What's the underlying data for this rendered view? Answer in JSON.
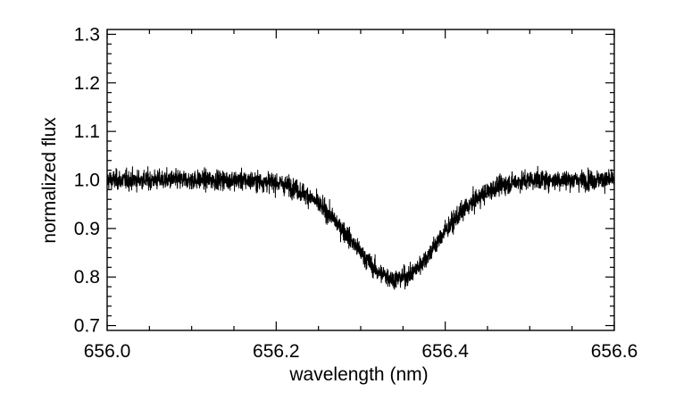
{
  "chart_data": {
    "type": "line",
    "title": "",
    "xlabel": "wavelength (nm)",
    "ylabel": "normalized flux",
    "xlim": [
      656.0,
      656.6
    ],
    "ylim": [
      0.69,
      1.31
    ],
    "x_ticks": [
      656.0,
      656.2,
      656.4,
      656.6
    ],
    "x_tick_labels": [
      "656.0",
      "656.2",
      "656.4",
      "656.6"
    ],
    "y_ticks": [
      0.7,
      0.8,
      0.9,
      1.0,
      1.1,
      1.2,
      1.3
    ],
    "y_tick_labels": [
      "0.7",
      "0.8",
      "0.9",
      "1.0",
      "1.1",
      "1.2",
      "1.3"
    ],
    "grid": false,
    "legend": "none",
    "series": [
      {
        "color": "#000000",
        "noise_sigma": 0.018,
        "x": [
          656.0,
          656.05,
          656.1,
          656.15,
          656.2,
          656.22,
          656.24,
          656.26,
          656.28,
          656.3,
          656.32,
          656.34,
          656.36,
          656.38,
          656.4,
          656.42,
          656.44,
          656.46,
          656.48,
          656.5,
          656.55,
          656.6
        ],
        "values": [
          1.0,
          1.0,
          1.0,
          1.0,
          0.995,
          0.985,
          0.965,
          0.935,
          0.895,
          0.85,
          0.81,
          0.795,
          0.805,
          0.845,
          0.895,
          0.935,
          0.965,
          0.985,
          0.995,
          1.0,
          1.0,
          1.0
        ]
      }
    ]
  }
}
